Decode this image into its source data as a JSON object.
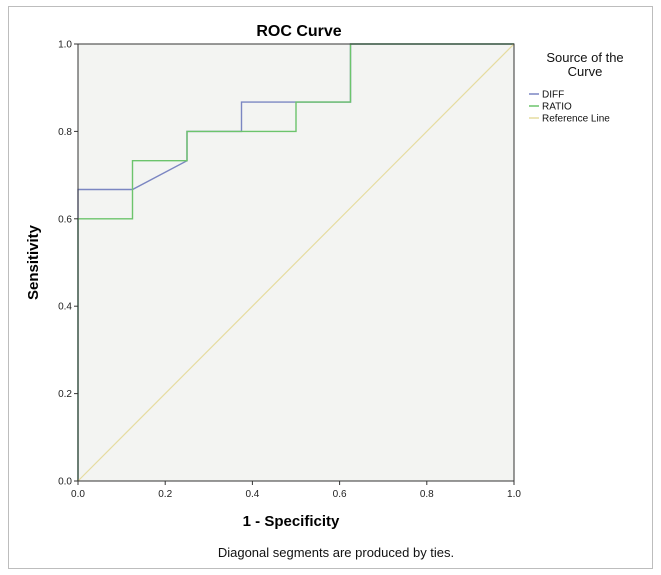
{
  "chart_data": {
    "type": "line",
    "title": "ROC Curve",
    "xlabel": "1 - Specificity",
    "ylabel": "Sensitivity",
    "xlim": [
      0,
      1
    ],
    "ylim": [
      0,
      1
    ],
    "x_ticks": [
      "0.0",
      "0.2",
      "0.4",
      "0.6",
      "0.8",
      "1.0"
    ],
    "y_ticks": [
      "0.0",
      "0.2",
      "0.4",
      "0.6",
      "0.8",
      "1.0"
    ],
    "grid": false,
    "legend_position": "right",
    "legend_title": "Source of the Curve",
    "series": [
      {
        "name": "DIFF",
        "color": "#7b86c2",
        "points": [
          [
            0,
            0
          ],
          [
            0,
            0.667
          ],
          [
            0.125,
            0.667
          ],
          [
            0.25,
            0.733
          ],
          [
            0.25,
            0.8
          ],
          [
            0.375,
            0.8
          ],
          [
            0.375,
            0.867
          ],
          [
            0.625,
            0.867
          ],
          [
            0.625,
            1.0
          ],
          [
            1.0,
            1.0
          ]
        ]
      },
      {
        "name": "RATIO",
        "color": "#6cc46c",
        "points": [
          [
            0,
            0
          ],
          [
            0,
            0.6
          ],
          [
            0.125,
            0.6
          ],
          [
            0.125,
            0.733
          ],
          [
            0.25,
            0.733
          ],
          [
            0.25,
            0.8
          ],
          [
            0.5,
            0.8
          ],
          [
            0.5,
            0.867
          ],
          [
            0.625,
            0.867
          ],
          [
            0.625,
            1.0
          ],
          [
            1.0,
            1.0
          ]
        ]
      },
      {
        "name": "Reference Line",
        "color": "#e6dca0",
        "points": [
          [
            0,
            0
          ],
          [
            1,
            1
          ]
        ]
      }
    ],
    "footnote": "Diagonal segments are produced by ties."
  }
}
